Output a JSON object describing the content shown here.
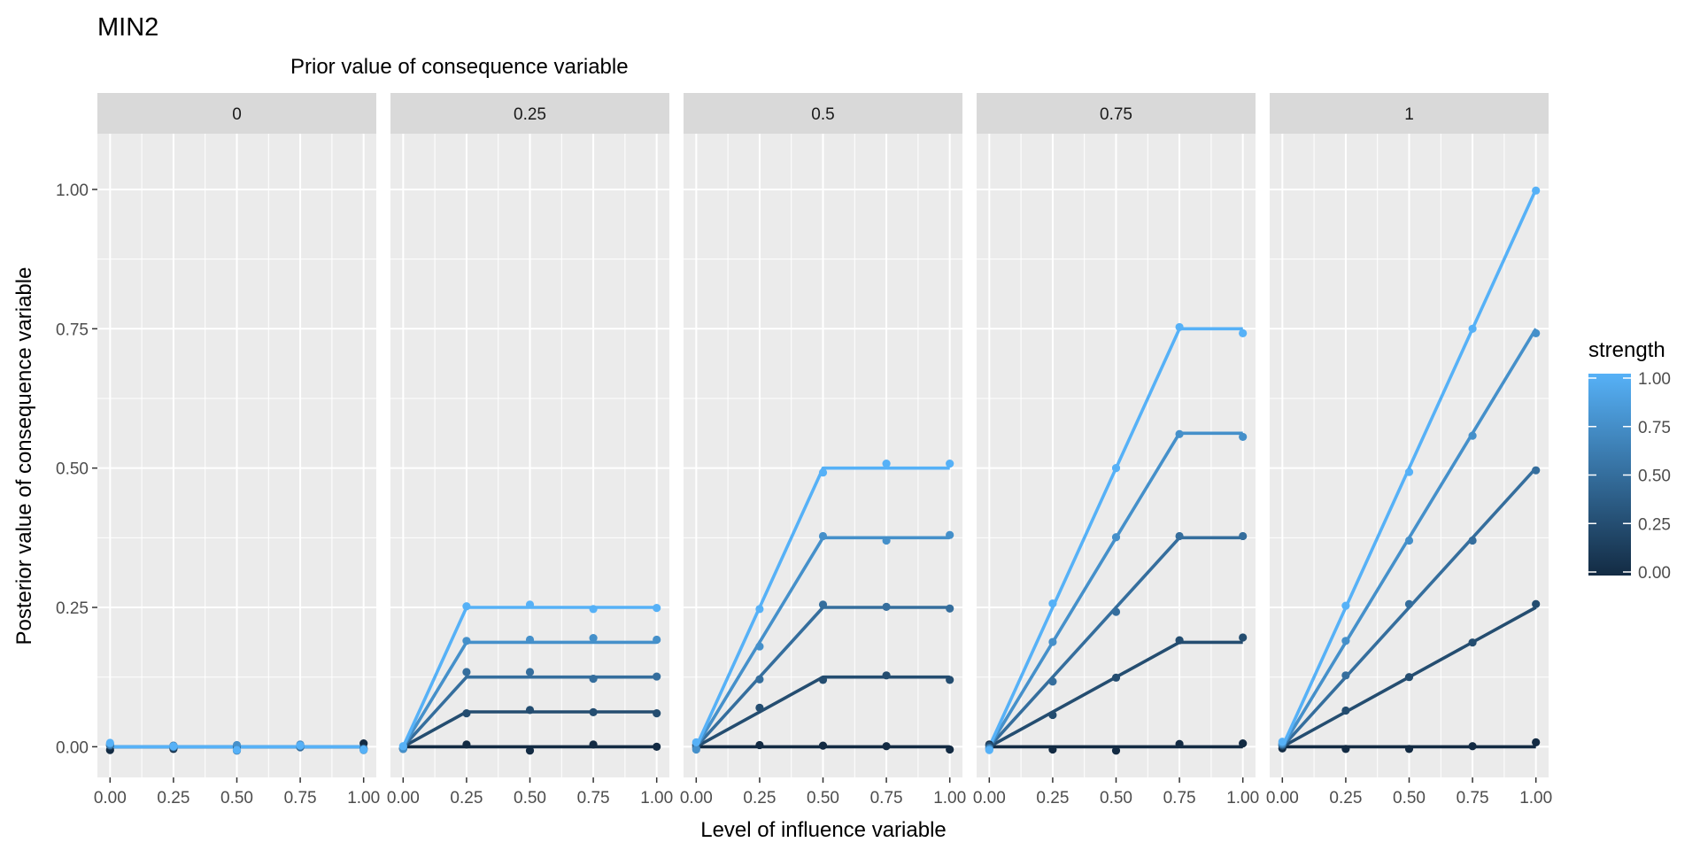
{
  "chart_data": {
    "type": "line",
    "title": "MIN2",
    "subtitle": "Prior value of consequence variable",
    "xlabel": "Level of influence variable",
    "ylabel": "Posterior value of consequence variable",
    "xlim": [
      -0.05,
      1.05
    ],
    "ylim": [
      -0.055,
      1.1
    ],
    "x_ticks": [
      0,
      0.25,
      0.5,
      0.75,
      1
    ],
    "x_tick_labels": [
      "0.00",
      "0.25",
      "0.50",
      "0.75",
      "1.00"
    ],
    "y_ticks": [
      0,
      0.25,
      0.5,
      0.75,
      1
    ],
    "y_tick_labels": [
      "0.00",
      "0.25",
      "0.50",
      "0.75",
      "1.00"
    ],
    "grid": true,
    "legend": {
      "title": "strength",
      "placement": "right",
      "type": "colorbar",
      "range": [
        0,
        1
      ],
      "ticks": [
        0,
        0.25,
        0.5,
        0.75,
        1
      ],
      "tick_labels": [
        "0.00",
        "0.25",
        "0.50",
        "0.75",
        "1.00"
      ],
      "low_color": "#132B43",
      "high_color": "#56B1F7"
    },
    "facets": [
      {
        "label": "0",
        "series": [
          {
            "strength": 0,
            "lines": [
              [
                0,
                0
              ],
              [
                1,
                0
              ]
            ],
            "points": [
              [
                0,
                -0.006
              ],
              [
                0.25,
                -0.004
              ],
              [
                0.5,
                0.001
              ],
              [
                0.75,
                0.003
              ],
              [
                1,
                0.006
              ]
            ]
          },
          {
            "strength": 0.25,
            "lines": [
              [
                0,
                0
              ],
              [
                1,
                0
              ]
            ],
            "points": [
              [
                0,
                0.002
              ],
              [
                0.25,
                -0.002
              ],
              [
                0.5,
                -0.005
              ],
              [
                0.75,
                0.001
              ],
              [
                1,
                -0.003
              ]
            ]
          },
          {
            "strength": 0.5,
            "lines": [
              [
                0,
                0
              ],
              [
                1,
                0
              ]
            ],
            "points": [
              [
                0,
                0.003
              ],
              [
                0.25,
                0.002
              ],
              [
                0.5,
                -0.007
              ],
              [
                0.75,
                -0.001
              ],
              [
                1,
                -0.004
              ]
            ]
          },
          {
            "strength": 0.75,
            "lines": [
              [
                0,
                0
              ],
              [
                1,
                0
              ]
            ],
            "points": [
              [
                0,
                0.005
              ],
              [
                0.25,
                0
              ],
              [
                0.5,
                0.003
              ],
              [
                0.75,
                0.004
              ],
              [
                1,
                -0.006
              ]
            ]
          },
          {
            "strength": 1,
            "lines": [
              [
                0,
                0
              ],
              [
                1,
                0
              ]
            ],
            "points": [
              [
                0,
                0.007
              ],
              [
                0.25,
                0.001
              ],
              [
                0.5,
                -0.006
              ],
              [
                0.75,
                0.002
              ],
              [
                1,
                -0.005
              ]
            ]
          }
        ]
      },
      {
        "label": "0.25",
        "series": [
          {
            "strength": 0,
            "lines": [
              [
                0,
                0
              ],
              [
                1,
                0
              ]
            ],
            "points": [
              [
                0,
                -0.004
              ],
              [
                0.25,
                0.004
              ],
              [
                0.5,
                -0.007
              ],
              [
                0.75,
                0.004
              ],
              [
                1,
                0
              ]
            ]
          },
          {
            "strength": 0.25,
            "lines": [
              [
                0,
                0
              ],
              [
                0.25,
                0.0625
              ],
              [
                1,
                0.0625
              ]
            ],
            "points": [
              [
                0,
                -0.003
              ],
              [
                0.25,
                0.06
              ],
              [
                0.5,
                0.066
              ],
              [
                0.75,
                0.062
              ],
              [
                1,
                0.06
              ]
            ]
          },
          {
            "strength": 0.5,
            "lines": [
              [
                0,
                0
              ],
              [
                0.25,
                0.125
              ],
              [
                1,
                0.125
              ]
            ],
            "points": [
              [
                0,
                -0.002
              ],
              [
                0.25,
                0.134
              ],
              [
                0.5,
                0.134
              ],
              [
                0.75,
                0.122
              ],
              [
                1,
                0.126
              ]
            ]
          },
          {
            "strength": 0.75,
            "lines": [
              [
                0,
                0
              ],
              [
                0.25,
                0.1875
              ],
              [
                1,
                0.1875
              ]
            ],
            "points": [
              [
                0,
                -0.004
              ],
              [
                0.25,
                0.19
              ],
              [
                0.5,
                0.192
              ],
              [
                0.75,
                0.195
              ],
              [
                1,
                0.192
              ]
            ]
          },
          {
            "strength": 1,
            "lines": [
              [
                0,
                0
              ],
              [
                0.25,
                0.25
              ],
              [
                1,
                0.25
              ]
            ],
            "points": [
              [
                0,
                0.001
              ],
              [
                0.25,
                0.252
              ],
              [
                0.5,
                0.255
              ],
              [
                0.75,
                0.247
              ],
              [
                1,
                0.249
              ]
            ]
          }
        ]
      },
      {
        "label": "0.5",
        "series": [
          {
            "strength": 0,
            "lines": [
              [
                0,
                0
              ],
              [
                1,
                0
              ]
            ],
            "points": [
              [
                0,
                0.001
              ],
              [
                0.25,
                0.003
              ],
              [
                0.5,
                0.002
              ],
              [
                0.75,
                0.001
              ],
              [
                1,
                -0.005
              ]
            ]
          },
          {
            "strength": 0.25,
            "lines": [
              [
                0,
                0
              ],
              [
                0.5,
                0.125
              ],
              [
                1,
                0.125
              ]
            ],
            "points": [
              [
                0,
                0.004
              ],
              [
                0.25,
                0.07
              ],
              [
                0.5,
                0.12
              ],
              [
                0.75,
                0.128
              ],
              [
                1,
                0.12
              ]
            ]
          },
          {
            "strength": 0.5,
            "lines": [
              [
                0,
                0
              ],
              [
                0.5,
                0.25
              ],
              [
                1,
                0.25
              ]
            ],
            "points": [
              [
                0,
                -0.002
              ],
              [
                0.25,
                0.121
              ],
              [
                0.5,
                0.255
              ],
              [
                0.75,
                0.251
              ],
              [
                1,
                0.248
              ]
            ]
          },
          {
            "strength": 0.75,
            "lines": [
              [
                0,
                0
              ],
              [
                0.5,
                0.375
              ],
              [
                1,
                0.375
              ]
            ],
            "points": [
              [
                0,
                -0.005
              ],
              [
                0.25,
                0.18
              ],
              [
                0.5,
                0.378
              ],
              [
                0.75,
                0.37
              ],
              [
                1,
                0.38
              ]
            ]
          },
          {
            "strength": 1,
            "lines": [
              [
                0,
                0
              ],
              [
                0.5,
                0.5
              ],
              [
                1,
                0.5
              ]
            ],
            "points": [
              [
                0,
                0.008
              ],
              [
                0.25,
                0.247
              ],
              [
                0.5,
                0.492
              ],
              [
                0.75,
                0.508
              ],
              [
                1,
                0.508
              ]
            ]
          }
        ]
      },
      {
        "label": "0.75",
        "series": [
          {
            "strength": 0,
            "lines": [
              [
                0,
                0
              ],
              [
                1,
                0
              ]
            ],
            "points": [
              [
                0,
                0.004
              ],
              [
                0.25,
                -0.005
              ],
              [
                0.5,
                -0.007
              ],
              [
                0.75,
                0.005
              ],
              [
                1,
                0.006
              ]
            ]
          },
          {
            "strength": 0.25,
            "lines": [
              [
                0,
                0
              ],
              [
                0.75,
                0.1875
              ],
              [
                1,
                0.1875
              ]
            ],
            "points": [
              [
                0,
                0.002
              ],
              [
                0.25,
                0.057
              ],
              [
                0.5,
                0.124
              ],
              [
                0.75,
                0.191
              ],
              [
                1,
                0.196
              ]
            ]
          },
          {
            "strength": 0.5,
            "lines": [
              [
                0,
                0
              ],
              [
                0.75,
                0.375
              ],
              [
                1,
                0.375
              ]
            ],
            "points": [
              [
                0,
                -0.002
              ],
              [
                0.25,
                0.117
              ],
              [
                0.5,
                0.242
              ],
              [
                0.75,
                0.378
              ],
              [
                1,
                0.378
              ]
            ]
          },
          {
            "strength": 0.75,
            "lines": [
              [
                0,
                0
              ],
              [
                0.75,
                0.5625
              ],
              [
                1,
                0.5625
              ]
            ],
            "points": [
              [
                0,
                -0.004
              ],
              [
                0.25,
                0.188
              ],
              [
                0.5,
                0.376
              ],
              [
                0.75,
                0.561
              ],
              [
                1,
                0.556
              ]
            ]
          },
          {
            "strength": 1,
            "lines": [
              [
                0,
                0
              ],
              [
                0.75,
                0.75
              ],
              [
                1,
                0.75
              ]
            ],
            "points": [
              [
                0,
                -0.006
              ],
              [
                0.25,
                0.257
              ],
              [
                0.5,
                0.5
              ],
              [
                0.75,
                0.753
              ],
              [
                1,
                0.742
              ]
            ]
          }
        ]
      },
      {
        "label": "1",
        "series": [
          {
            "strength": 0,
            "lines": [
              [
                0,
                0
              ],
              [
                1,
                0
              ]
            ],
            "points": [
              [
                0,
                -0.003
              ],
              [
                0.25,
                -0.004
              ],
              [
                0.5,
                -0.004
              ],
              [
                0.75,
                0.001
              ],
              [
                1,
                0.008
              ]
            ]
          },
          {
            "strength": 0.25,
            "lines": [
              [
                0,
                0
              ],
              [
                1,
                0.25
              ]
            ],
            "points": [
              [
                0,
                0.002
              ],
              [
                0.25,
                0.065
              ],
              [
                0.5,
                0.125
              ],
              [
                0.75,
                0.187
              ],
              [
                1,
                0.256
              ]
            ]
          },
          {
            "strength": 0.5,
            "lines": [
              [
                0,
                0
              ],
              [
                1,
                0.5
              ]
            ],
            "points": [
              [
                0,
                0.004
              ],
              [
                0.25,
                0.128
              ],
              [
                0.5,
                0.256
              ],
              [
                0.75,
                0.37
              ],
              [
                1,
                0.496
              ]
            ]
          },
          {
            "strength": 0.75,
            "lines": [
              [
                0,
                0
              ],
              [
                1,
                0.75
              ]
            ],
            "points": [
              [
                0,
                0.006
              ],
              [
                0.25,
                0.19
              ],
              [
                0.5,
                0.37
              ],
              [
                0.75,
                0.558
              ],
              [
                1,
                0.742
              ]
            ]
          },
          {
            "strength": 1,
            "lines": [
              [
                0,
                0
              ],
              [
                1,
                1
              ]
            ],
            "points": [
              [
                0,
                0.009
              ],
              [
                0.25,
                0.253
              ],
              [
                0.5,
                0.493
              ],
              [
                0.75,
                0.75
              ],
              [
                1,
                0.998
              ]
            ]
          }
        ]
      }
    ]
  }
}
